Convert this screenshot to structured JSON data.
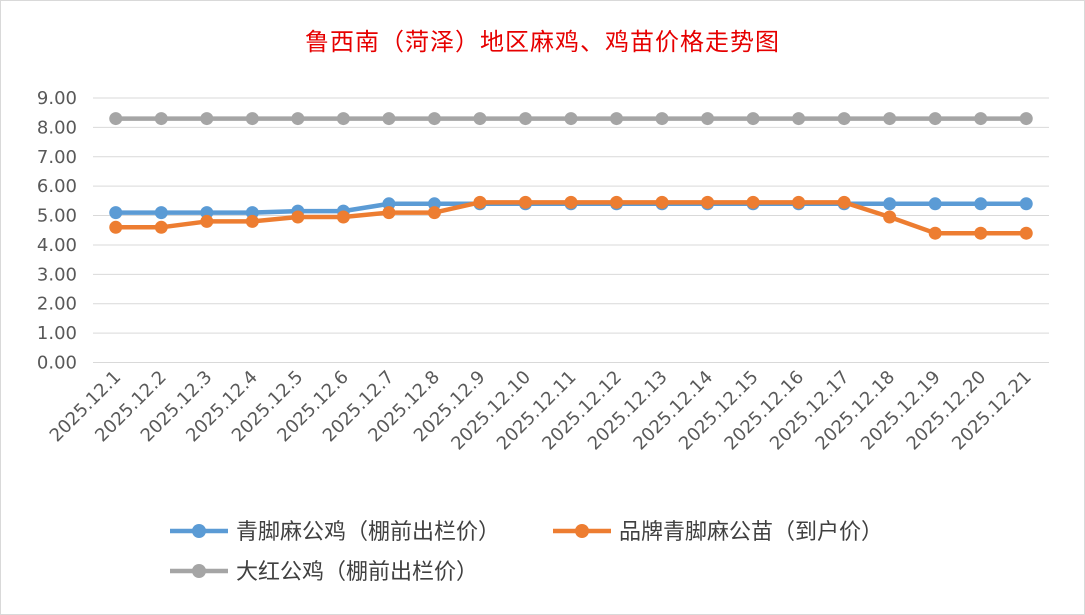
{
  "chart_data": {
    "type": "line",
    "title": "鲁西南（菏泽）地区麻鸡、鸡苗价格走势图",
    "categories": [
      "2025.12.1",
      "2025.12.2",
      "2025.12.3",
      "2025.12.4",
      "2025.12.5",
      "2025.12.6",
      "2025.12.7",
      "2025.12.8",
      "2025.12.9",
      "2025.12.10",
      "2025.12.11",
      "2025.12.12",
      "2025.12.13",
      "2025.12.14",
      "2025.12.15",
      "2025.12.16",
      "2025.12.17",
      "2025.12.18",
      "2025.12.19",
      "2025.12.20",
      "2025.12.21"
    ],
    "y_ticks": [
      "0.00",
      "1.00",
      "2.00",
      "3.00",
      "4.00",
      "5.00",
      "6.00",
      "7.00",
      "8.00",
      "9.00"
    ],
    "ylim": [
      0,
      9
    ],
    "grid": true,
    "legend_position": "bottom",
    "series": [
      {
        "name": "青脚麻公鸡（棚前出栏价）",
        "color": "#5b9bd5",
        "values": [
          5.1,
          5.1,
          5.1,
          5.1,
          5.15,
          5.15,
          5.4,
          5.4,
          5.4,
          5.4,
          5.4,
          5.4,
          5.4,
          5.4,
          5.4,
          5.4,
          5.4,
          5.4,
          5.4,
          5.4,
          5.4
        ]
      },
      {
        "name": "品牌青脚麻公苗（到户价）",
        "color": "#ed7d31",
        "values": [
          4.6,
          4.6,
          4.8,
          4.8,
          4.95,
          4.95,
          5.1,
          5.1,
          5.45,
          5.45,
          5.45,
          5.45,
          5.45,
          5.45,
          5.45,
          5.45,
          5.45,
          4.95,
          4.4,
          4.4,
          4.4
        ]
      },
      {
        "name": "大红公鸡（棚前出栏价）",
        "color": "#a5a5a5",
        "values": [
          8.3,
          8.3,
          8.3,
          8.3,
          8.3,
          8.3,
          8.3,
          8.3,
          8.3,
          8.3,
          8.3,
          8.3,
          8.3,
          8.3,
          8.3,
          8.3,
          8.3,
          8.3,
          8.3,
          8.3,
          8.3
        ]
      }
    ]
  }
}
